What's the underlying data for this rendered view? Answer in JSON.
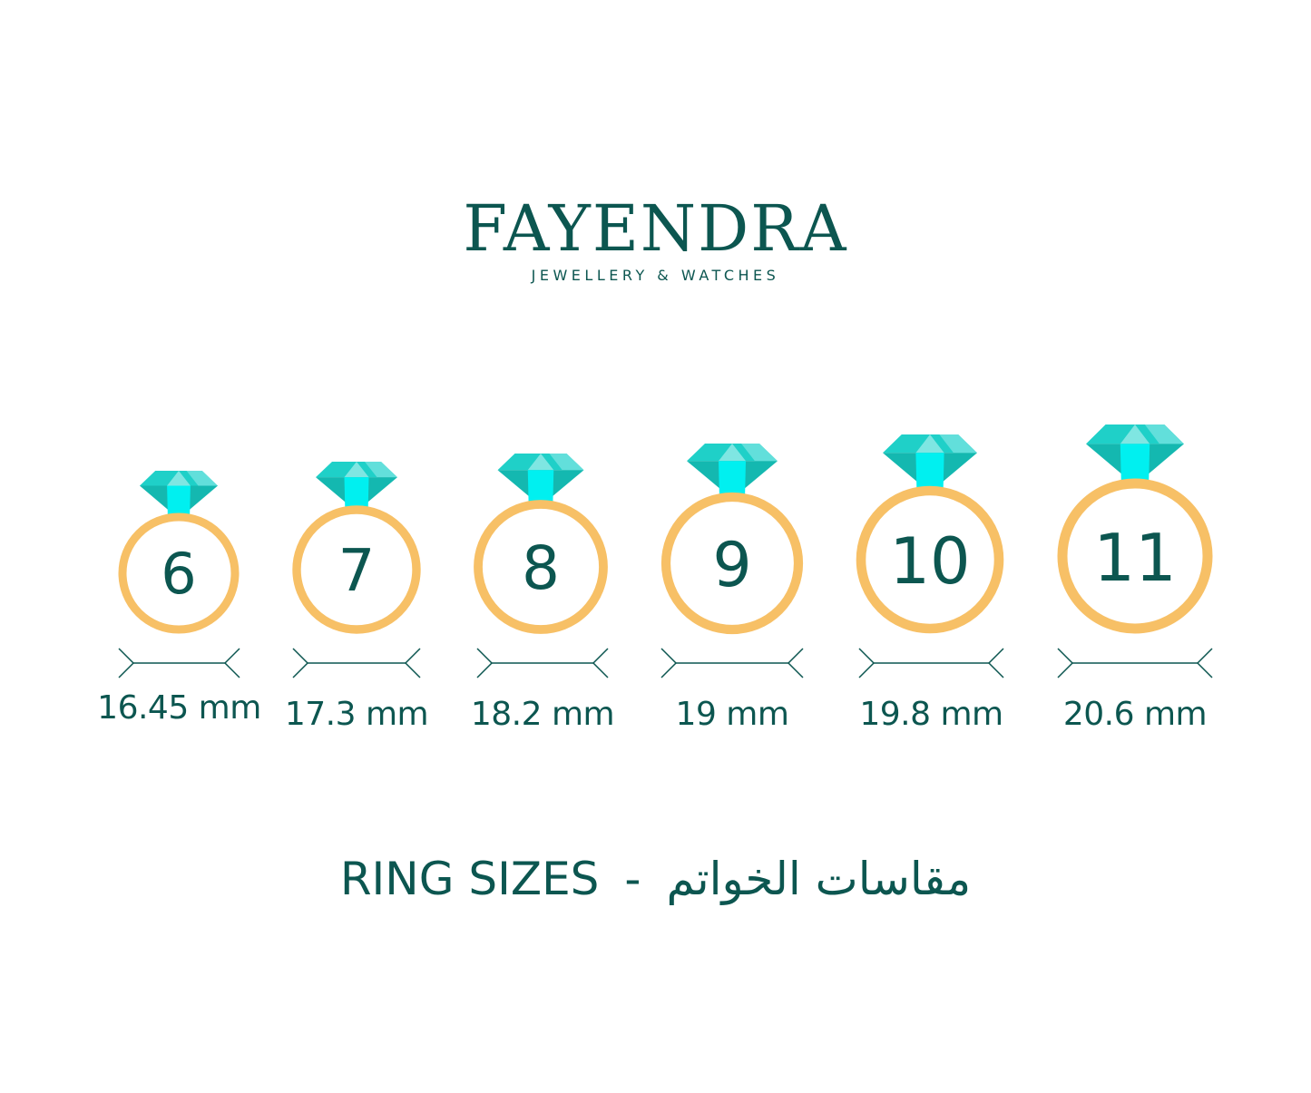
{
  "brand": {
    "name": "FAYENDRA",
    "tagline": "JEWELLERY & WATCHES"
  },
  "colors": {
    "text": "#0c5650",
    "ring": "#f7c066",
    "diamond_dark": "#14b8b0",
    "diamond_mid": "#1fd0c8",
    "diamond_light": "#7fe6e2",
    "diamond_bright": "#00f0f0"
  },
  "rings": [
    {
      "size": "6",
      "diameter": "16.45 mm"
    },
    {
      "size": "7",
      "diameter": "17.3 mm"
    },
    {
      "size": "8",
      "diameter": "18.2 mm"
    },
    {
      "size": "9",
      "diameter": "19 mm"
    },
    {
      "size": "10",
      "diameter": "19.8 mm"
    },
    {
      "size": "11",
      "diameter": "20.6 mm"
    }
  ],
  "footer": {
    "title_en": "RING SIZES",
    "separator": "-",
    "title_ar": "مقاسات الخواتم"
  }
}
